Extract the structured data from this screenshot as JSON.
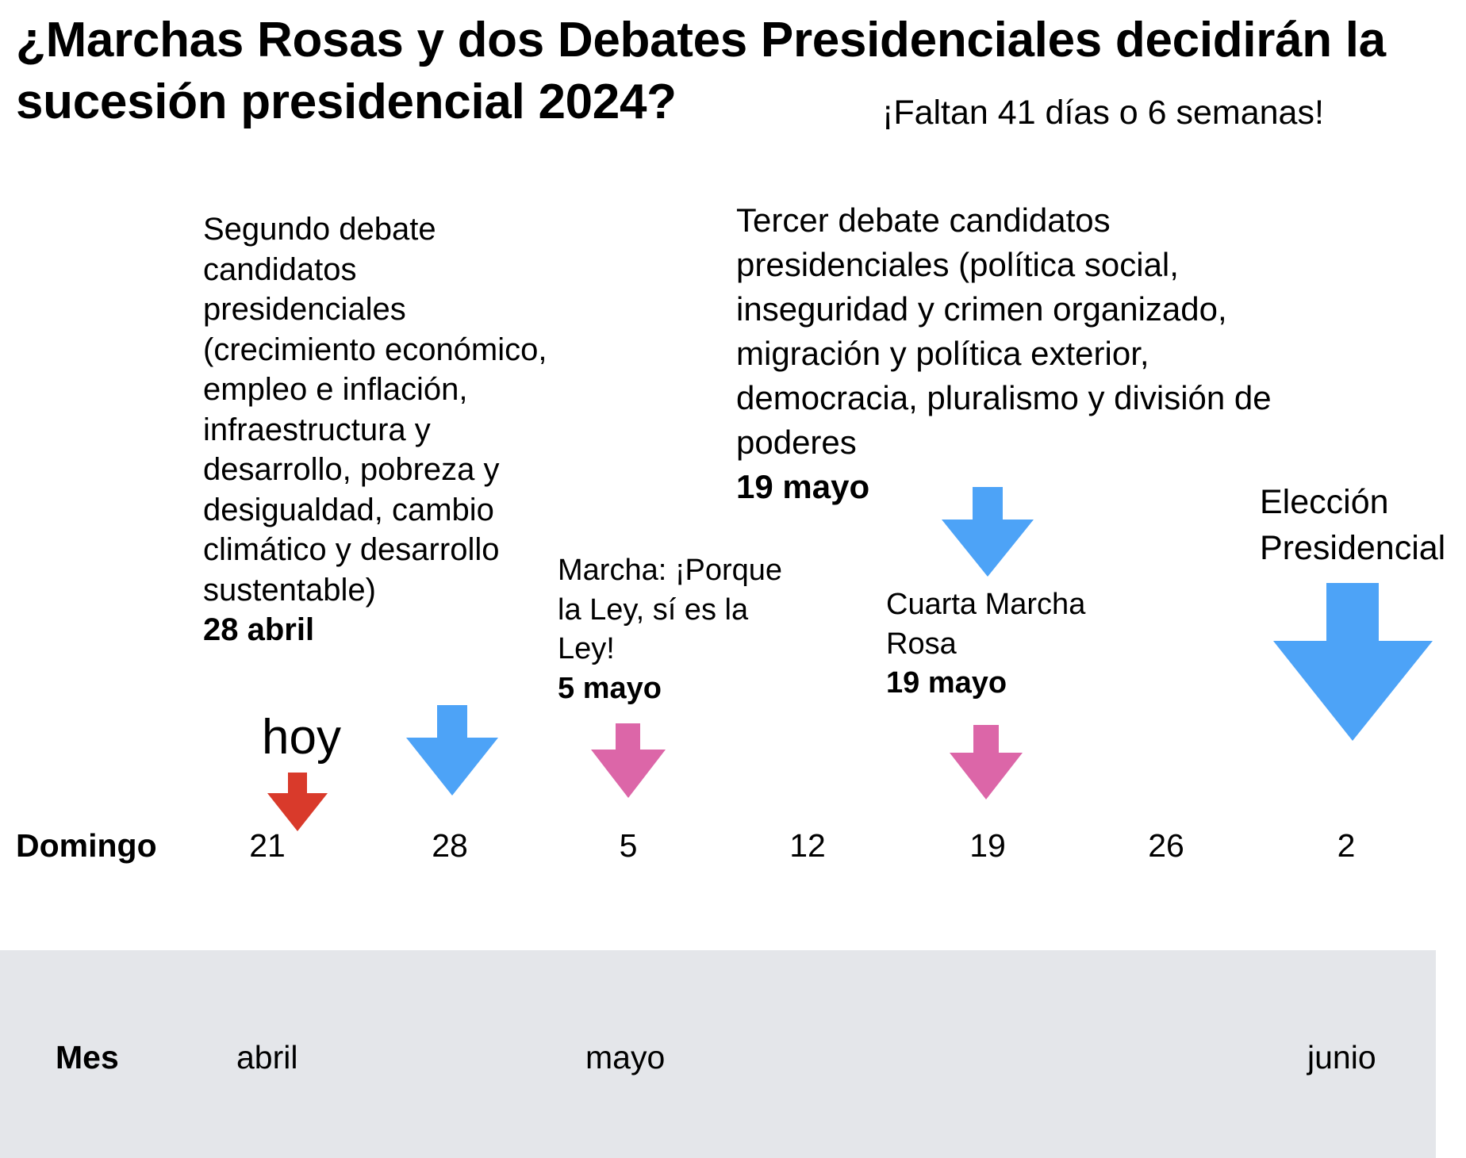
{
  "title": "¿Marchas Rosas y dos Debates Presidenciales decidirán la sucesión presidencial 2024?",
  "countdown": "¡Faltan 41 días o 6 semanas!",
  "colors": {
    "debate_arrow": "#4da3f7",
    "march_arrow": "#dc66a8",
    "today_arrow": "#d93a2b",
    "month_band": "#e4e6ea"
  },
  "events": {
    "debate2": {
      "text": "Segundo debate candidatos presidenciales (crecimiento económico, empleo e inflación, infraestructura y desarrollo, pobreza y desigualdad, cambio climático y desarrollo sustentable)",
      "date": "28 abril"
    },
    "march1": {
      "text": "Marcha: ¡Porque la Ley, sí es la Ley!",
      "date": "5 mayo"
    },
    "debate3": {
      "text": "Tercer debate candidatos presidenciales (política social, inseguridad y crimen organizado, migración y política exterior, democracia, pluralismo y división de poderes",
      "date": "19 mayo"
    },
    "march2": {
      "text": "Cuarta Marcha Rosa",
      "date": "19 mayo"
    },
    "election": {
      "text": "Elección Presidencial"
    }
  },
  "today_label": "hoy",
  "sundays": {
    "label": "Domingo",
    "days": [
      "21",
      "28",
      "5",
      "12",
      "19",
      "26",
      "2"
    ]
  },
  "months": {
    "label": "Mes",
    "items": [
      "abril",
      "mayo",
      "junio"
    ]
  }
}
